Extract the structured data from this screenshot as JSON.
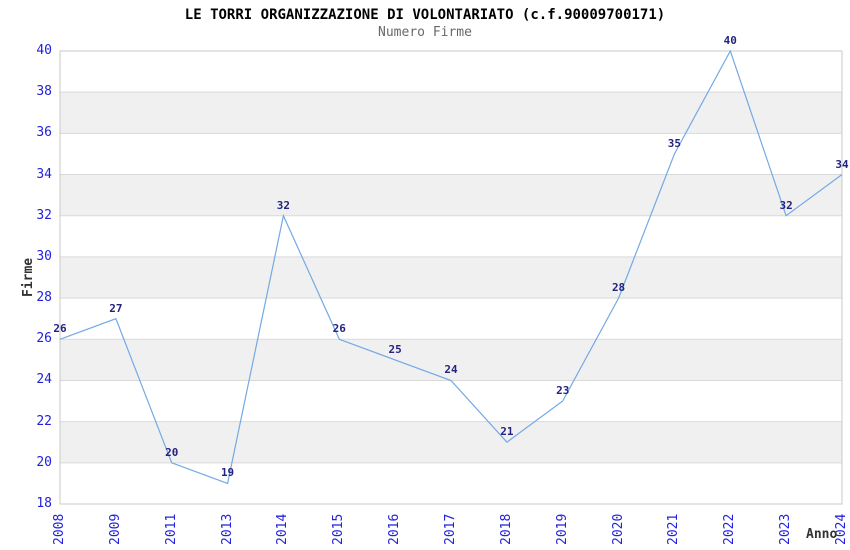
{
  "chart_data": {
    "type": "line",
    "title": "LE TORRI ORGANIZZAZIONE DI VOLONTARIATO (c.f.90009700171)",
    "subtitle": "Numero Firme",
    "xlabel": "Anno",
    "ylabel": "Firme",
    "x": [
      "2008",
      "2009",
      "2011",
      "2013",
      "2014",
      "2015",
      "2016",
      "2017",
      "2018",
      "2019",
      "2020",
      "2021",
      "2022",
      "2023",
      "2024"
    ],
    "values": [
      26,
      27,
      20,
      19,
      32,
      26,
      25,
      24,
      21,
      23,
      28,
      35,
      40,
      32,
      34
    ],
    "ylim": [
      18,
      40
    ],
    "ytick_step": 2,
    "grid": "horizontal",
    "banding": "alternating-gray",
    "legend_position": "none",
    "point_labels_visible": true,
    "colors": {
      "line": "#74a9e4",
      "tick_label": "#2222dd",
      "point_label": "#242480",
      "band": "#f0f0f0",
      "grid": "#d9d9d9",
      "border": "#c9c9c9",
      "title": "#000000",
      "subtitle": "#696969",
      "axis_title": "#333333"
    }
  }
}
